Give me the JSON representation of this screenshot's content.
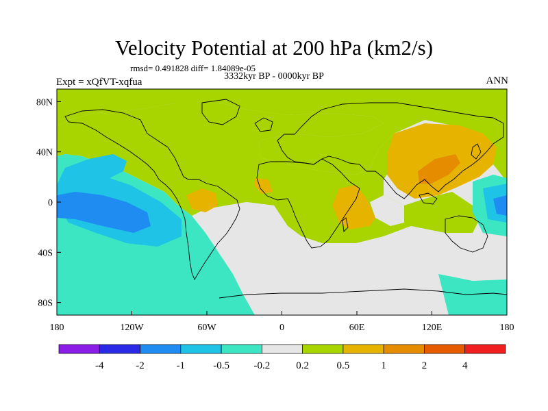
{
  "title": "Velocity Potential at 200 hPa (km2/s)",
  "stats": "rmsd= 0.491828 diff= 1.84089e-05",
  "period": "3332kyr BP - 0000kyr BP",
  "experiment": "Expt = xQfVT-xqfua",
  "season": "ANN",
  "map_axes": {
    "x_ticks": [
      {
        "value": -180,
        "label": "180"
      },
      {
        "value": -120,
        "label": "120W"
      },
      {
        "value": -60,
        "label": "60W"
      },
      {
        "value": 0,
        "label": "0"
      },
      {
        "value": 60,
        "label": "60E"
      },
      {
        "value": 120,
        "label": "120E"
      },
      {
        "value": 180,
        "label": "180"
      }
    ],
    "y_ticks": [
      {
        "value": 80,
        "label": "80N"
      },
      {
        "value": 40,
        "label": "40N"
      },
      {
        "value": 0,
        "label": "0"
      },
      {
        "value": -40,
        "label": "40S"
      },
      {
        "value": -80,
        "label": "80S"
      }
    ],
    "lon_range": [
      -180,
      180
    ],
    "lat_range": [
      -90,
      90
    ]
  },
  "colorbar": {
    "colors": [
      "#8a1ee6",
      "#2a2ae6",
      "#1e8cf0",
      "#1ec3e6",
      "#3ce6c3",
      "#e6e6e6",
      "#a8d400",
      "#e6b400",
      "#e68c00",
      "#e65a00",
      "#f01e1e"
    ],
    "labels": [
      "-4",
      "-2",
      "-1",
      "-0.5",
      "-0.2",
      "0.2",
      "0.5",
      "1",
      "2",
      "4"
    ]
  },
  "field_colors": {
    "neutral": "#e6e6e6",
    "low_pos": "#a8d400",
    "mid_pos": "#e6b400",
    "high_pos": "#e68c00",
    "low_neg": "#3ce6c3",
    "mid_neg": "#1ec3e6",
    "high_neg": "#1e8cf0",
    "coast": "#000000"
  }
}
